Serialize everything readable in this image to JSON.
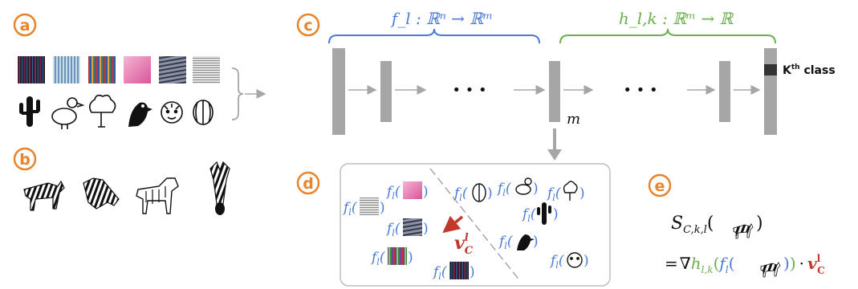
{
  "panels": {
    "a": "a",
    "b": "b",
    "c": "c",
    "d": "d",
    "e": "e"
  },
  "colors": {
    "orange": "#e8842c",
    "blue": "#4a7bd8",
    "green": "#6ab04c",
    "red": "#c0392b",
    "gray": "#a6a6a6",
    "dark": "#1a1a1a"
  },
  "concept_textures": [
    "dark-stripes",
    "blue-stripes",
    "multicolor-stripes",
    "pink-waves",
    "gray-noise",
    "gray-lines"
  ],
  "random_images": [
    "cactus",
    "dodo-bird",
    "tree",
    "puffin",
    "tiger",
    "watermelon"
  ],
  "zebra_images": [
    "zebra-side",
    "zebra-head-profile",
    "zebra-standing-outline",
    "zebra-head-front"
  ],
  "network": {
    "f_label": "f_l : ℝⁿ → ℝᵐ",
    "h_label": "h_l,k : ℝᵐ → ℝ",
    "m_label": "m",
    "class_label": "K",
    "class_suffix": "th",
    "class_word": " class",
    "dots": "• • •"
  },
  "panel_d": {
    "f_label": "f",
    "f_sub": "l",
    "vector_label": "v",
    "vector_sup": "l",
    "vector_sub": "C"
  },
  "panel_e": {
    "s_main": "S",
    "s_sub": "C,k,l",
    "grad": "∇",
    "h": "h",
    "h_sub": "l,k",
    "f": "f",
    "f_sub": "l",
    "dot": "·",
    "v": "v",
    "v_sup": "l",
    "v_sub": "C",
    "equals": "="
  }
}
